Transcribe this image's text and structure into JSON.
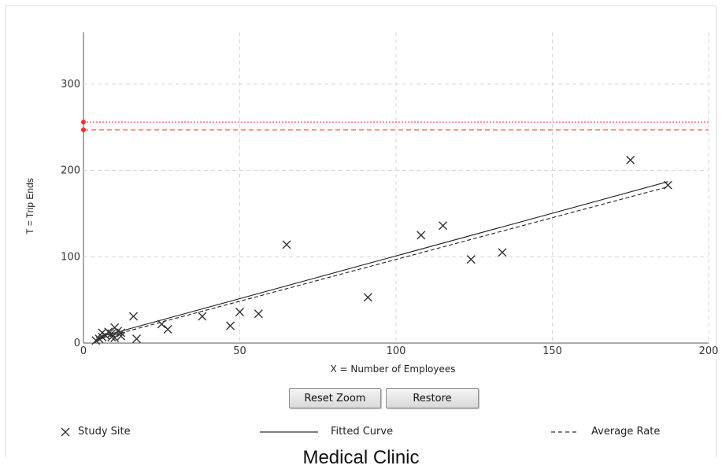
{
  "chart_data": {
    "type": "scatter",
    "xlabel": "X = Number of Employees",
    "ylabel": "T = Trip Ends",
    "xlim": [
      0,
      200
    ],
    "ylim": [
      0,
      360
    ],
    "x_ticks": [
      0,
      50,
      100,
      150,
      200
    ],
    "y_ticks": [
      0,
      100,
      200,
      300
    ],
    "grid": true,
    "series": [
      {
        "name": "Study Site",
        "marker": "x",
        "color": "#333333",
        "points": [
          [
            4,
            3
          ],
          [
            5,
            5
          ],
          [
            6,
            7
          ],
          [
            6,
            12
          ],
          [
            7,
            9
          ],
          [
            8,
            13
          ],
          [
            9,
            7
          ],
          [
            9,
            11
          ],
          [
            10,
            18
          ],
          [
            10,
            6
          ],
          [
            11,
            14
          ],
          [
            12,
            8
          ],
          [
            12,
            12
          ],
          [
            16,
            31
          ],
          [
            17,
            5
          ],
          [
            25,
            22
          ],
          [
            27,
            16
          ],
          [
            38,
            31
          ],
          [
            47,
            20
          ],
          [
            50,
            36
          ],
          [
            56,
            34
          ],
          [
            65,
            114
          ],
          [
            91,
            53
          ],
          [
            108,
            125
          ],
          [
            115,
            136
          ],
          [
            124,
            97
          ],
          [
            134,
            105
          ],
          [
            175,
            212
          ],
          [
            187,
            183
          ]
        ]
      },
      {
        "name": "Fitted Curve",
        "type": "line",
        "style": "solid",
        "color": "#222222",
        "points": [
          [
            4,
            6
          ],
          [
            187,
            187
          ]
        ]
      },
      {
        "name": "Average Rate",
        "type": "line",
        "style": "dashed",
        "color": "#222222",
        "points": [
          [
            4,
            4
          ],
          [
            187,
            181
          ]
        ]
      }
    ],
    "reference_lines": [
      {
        "y": 256,
        "style": "dotted",
        "color": "#ff2a2a"
      },
      {
        "y": 247,
        "style": "dashed",
        "color": "#ff2a2a"
      }
    ]
  },
  "controls": {
    "reset_zoom": "Reset Zoom",
    "restore": "Restore"
  },
  "legend": {
    "study_site": "Study Site",
    "fitted_curve": "Fitted Curve",
    "average_rate": "Average Rate"
  },
  "caption": "Medical Clinic"
}
